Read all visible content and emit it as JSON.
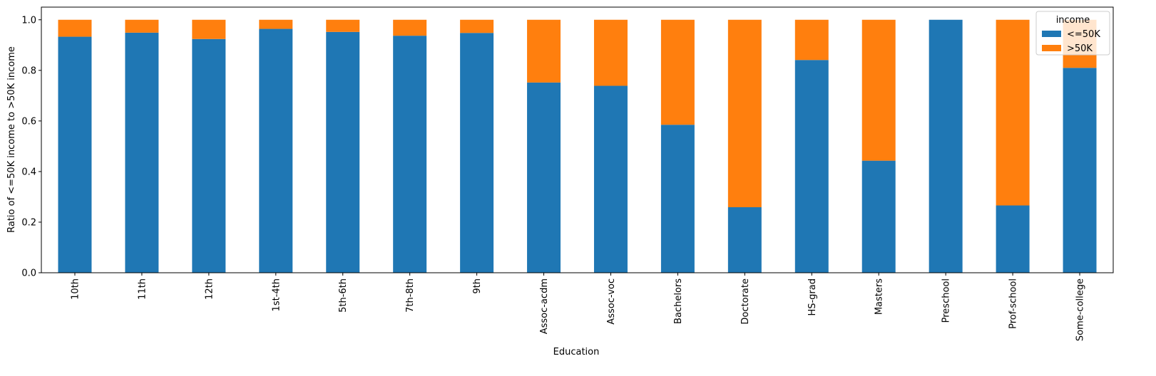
{
  "chart_data": {
    "type": "bar",
    "stacked": true,
    "title": "",
    "xlabel": "Education",
    "ylabel": "Ratio of <=50K income to >50K income",
    "ylim": [
      0,
      1.05
    ],
    "yticks": [
      0.0,
      0.2,
      0.4,
      0.6,
      0.8,
      1.0
    ],
    "ytick_labels": [
      "0.0",
      "0.2",
      "0.4",
      "0.6",
      "0.8",
      "1.0"
    ],
    "categories": [
      "10th",
      "11th",
      "12th",
      "1st-4th",
      "5th-6th",
      "7th-8th",
      "9th",
      "Assoc-acdm",
      "Assoc-voc",
      "Bachelors",
      "Doctorate",
      "HS-grad",
      "Masters",
      "Preschool",
      "Prof-school",
      "Some-college"
    ],
    "series": [
      {
        "name": "<=50K",
        "color": "#1f77b4",
        "values": [
          0.933,
          0.949,
          0.924,
          0.964,
          0.952,
          0.937,
          0.948,
          0.752,
          0.739,
          0.585,
          0.259,
          0.841,
          0.443,
          1.0,
          0.266,
          0.81
        ]
      },
      {
        "name": ">50K",
        "color": "#ff7f0e",
        "values": [
          0.067,
          0.051,
          0.076,
          0.036,
          0.048,
          0.063,
          0.052,
          0.248,
          0.261,
          0.415,
          0.741,
          0.159,
          0.557,
          0.0,
          0.734,
          0.19
        ]
      }
    ],
    "legend": {
      "title": "income",
      "position": "top-right"
    },
    "grid": false
  }
}
